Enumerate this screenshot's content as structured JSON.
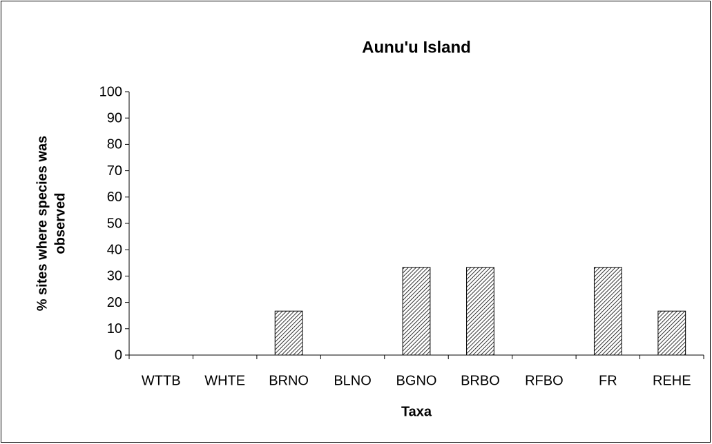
{
  "chart_data": {
    "type": "bar",
    "title": "Aunu'u Island",
    "xlabel": "Taxa",
    "ylabel": [
      "% sites where species was",
      "observed"
    ],
    "categories": [
      "WTTB",
      "WHTE",
      "BRNO",
      "BLNO",
      "BGNO",
      "BRBO",
      "RFBO",
      "FR",
      "REHE"
    ],
    "values": [
      0,
      0,
      16.7,
      0,
      33.3,
      33.3,
      0,
      33.3,
      16.7
    ],
    "color": "#000000",
    "ylim": [
      0,
      100
    ],
    "yticks": [
      0,
      10,
      20,
      30,
      40,
      50,
      60,
      70,
      80,
      90,
      100
    ],
    "grid": false
  }
}
